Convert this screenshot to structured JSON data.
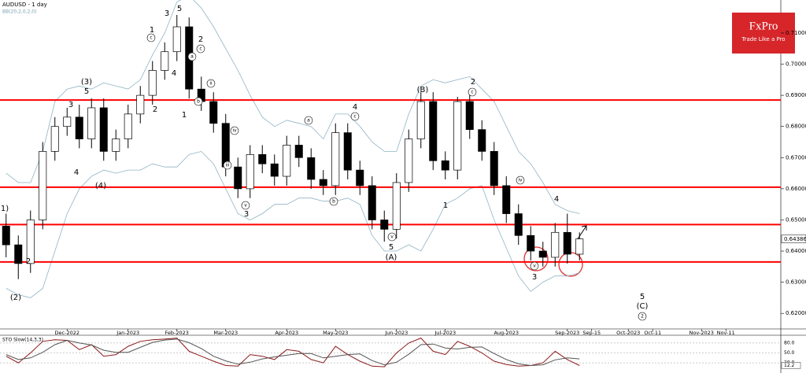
{
  "brand": {
    "name": "FxPro",
    "tagline": "Trade Like a Pro"
  },
  "chart_data": [
    {
      "type": "candlestick",
      "title": "AUDUSD - 1 day",
      "subtitle": "BB(20,2,0,2,0)",
      "categories": [
        null,
        null,
        null,
        null,
        null,
        "Dec-2022",
        null,
        null,
        null,
        null,
        "Jan-2023",
        null,
        null,
        null,
        "Feb-2023",
        null,
        null,
        null,
        "Mar-2023",
        null,
        null,
        null,
        null,
        "Apr-2023",
        null,
        null,
        null,
        "May-2023",
        null,
        null,
        null,
        null,
        "Jun-2023",
        null,
        null,
        null,
        "Jul-2023",
        null,
        null,
        null,
        null,
        "Aug-2023",
        null,
        null,
        null,
        null,
        "Sep-2023",
        null,
        "Sep-15",
        null,
        null,
        "Oct-2023",
        null,
        "Oct-11",
        null,
        null,
        null,
        "Nov-2023",
        null,
        "Nov-11",
        null,
        null,
        null,
        null
      ],
      "open": [
        0.648,
        0.642,
        0.636,
        0.65,
        0.672,
        0.68,
        0.683,
        0.676,
        0.686,
        0.672,
        0.676,
        0.684,
        0.69,
        0.698,
        0.704,
        0.712,
        0.692,
        0.688,
        0.681,
        0.667,
        0.66,
        0.671,
        0.668,
        0.664,
        0.674,
        0.67,
        0.663,
        0.661,
        0.678,
        0.666,
        0.661,
        0.65,
        0.647,
        0.662,
        0.676,
        0.688,
        0.669,
        0.666,
        0.688,
        0.679,
        0.672,
        0.661,
        0.652,
        0.645,
        0.64,
        0.638,
        0.646,
        0.639,
        null,
        null,
        null,
        null,
        null,
        null,
        null,
        null,
        null,
        null,
        null,
        null,
        null,
        null,
        null,
        null
      ],
      "high": [
        0.652,
        0.645,
        0.653,
        0.675,
        0.683,
        0.686,
        0.687,
        0.689,
        0.689,
        0.679,
        0.687,
        0.693,
        0.701,
        0.707,
        0.7158,
        0.715,
        0.696,
        0.691,
        0.684,
        0.67,
        0.674,
        0.674,
        0.671,
        0.677,
        0.677,
        0.673,
        0.666,
        0.681,
        0.681,
        0.669,
        0.664,
        0.653,
        0.665,
        0.679,
        0.691,
        0.691,
        0.672,
        0.6895,
        0.691,
        0.682,
        0.675,
        0.664,
        0.655,
        0.648,
        0.643,
        0.649,
        0.652,
        0.646,
        null,
        null,
        null,
        null,
        null,
        null,
        null,
        null,
        null,
        null,
        null,
        null,
        null,
        null,
        null,
        null
      ],
      "low": [
        0.638,
        0.631,
        0.633,
        0.647,
        0.669,
        0.677,
        0.673,
        0.673,
        0.669,
        0.669,
        0.673,
        0.681,
        0.687,
        0.695,
        0.701,
        0.689,
        0.685,
        0.678,
        0.664,
        0.657,
        0.657,
        0.665,
        0.661,
        0.661,
        0.667,
        0.66,
        0.658,
        0.658,
        0.663,
        0.658,
        0.647,
        0.643,
        0.644,
        0.659,
        0.673,
        0.666,
        0.663,
        0.663,
        0.676,
        0.669,
        0.658,
        0.649,
        0.642,
        0.637,
        0.635,
        0.635,
        0.636,
        0.637,
        null,
        null,
        null,
        null,
        null,
        null,
        null,
        null,
        null,
        null,
        null,
        null,
        null,
        null,
        null,
        null
      ],
      "close": [
        0.642,
        0.636,
        0.65,
        0.672,
        0.68,
        0.683,
        0.676,
        0.686,
        0.672,
        0.676,
        0.684,
        0.69,
        0.698,
        0.704,
        0.712,
        0.692,
        0.688,
        0.681,
        0.667,
        0.66,
        0.671,
        0.668,
        0.664,
        0.674,
        0.67,
        0.663,
        0.661,
        0.678,
        0.666,
        0.661,
        0.65,
        0.647,
        0.662,
        0.676,
        0.688,
        0.669,
        0.666,
        0.688,
        0.679,
        0.672,
        0.661,
        0.652,
        0.645,
        0.64,
        0.638,
        0.646,
        0.639,
        0.6439,
        null,
        null,
        null,
        null,
        null,
        null,
        null,
        null,
        null,
        null,
        null,
        null,
        null,
        null,
        null,
        null
      ],
      "up_color": "#ffffff",
      "down_color": "#000000",
      "last_price": 0.64386,
      "bands": {
        "color": "#8fb4c4",
        "upper": [
          0.665,
          0.662,
          0.662,
          0.672,
          0.688,
          0.692,
          0.693,
          0.692,
          0.694,
          0.693,
          0.692,
          0.695,
          0.703,
          0.71,
          0.72,
          0.722,
          0.718,
          0.712,
          0.705,
          0.698,
          0.69,
          0.683,
          0.68,
          0.682,
          0.681,
          0.68,
          0.676,
          0.684,
          0.684,
          0.68,
          0.675,
          0.672,
          0.672,
          0.684,
          0.693,
          0.695,
          0.694,
          0.695,
          0.696,
          0.692,
          0.688,
          0.68,
          0.672,
          0.668,
          0.662,
          0.655,
          0.653,
          0.652,
          null,
          null,
          null,
          null,
          null,
          null,
          null,
          null,
          null,
          null,
          null,
          null,
          null,
          null,
          null,
          null
        ],
        "lower": [
          0.628,
          0.626,
          0.625,
          0.628,
          0.64,
          0.652,
          0.66,
          0.664,
          0.666,
          0.665,
          0.666,
          0.666,
          0.668,
          0.667,
          0.667,
          0.671,
          0.672,
          0.668,
          0.66,
          0.652,
          0.65,
          0.652,
          0.655,
          0.655,
          0.657,
          0.657,
          0.656,
          0.656,
          0.657,
          0.655,
          0.645,
          0.64,
          0.64,
          0.642,
          0.64,
          0.647,
          0.655,
          0.657,
          0.66,
          0.661,
          0.65,
          0.641,
          0.632,
          0.627,
          0.63,
          0.632,
          0.632,
          0.633,
          null,
          null,
          null,
          null,
          null,
          null,
          null,
          null,
          null,
          null,
          null,
          null,
          null,
          null,
          null,
          null
        ]
      },
      "levels": {
        "color": "#ff0000",
        "values": [
          0.6885,
          0.6605,
          0.6485,
          0.6365
        ]
      },
      "channels": [
        {
          "color": "#0000ff",
          "values": [
            null,
            null,
            null,
            null,
            null,
            null,
            null,
            null,
            null,
            null,
            null,
            null,
            null,
            null,
            null,
            null,
            0.7047,
            null,
            null,
            null,
            null,
            null,
            null,
            null,
            null,
            null,
            null,
            null,
            null,
            null,
            null,
            null,
            null,
            null,
            null,
            null,
            null,
            null,
            null,
            null,
            null,
            null,
            null,
            null,
            null,
            null,
            null,
            null,
            null,
            null,
            null,
            null,
            null,
            null,
            null,
            null,
            null,
            null,
            null,
            null,
            null,
            null,
            null,
            0.6683
          ]
        },
        {
          "color": "#0000ff",
          "values": [
            null,
            null,
            null,
            null,
            null,
            null,
            null,
            null,
            null,
            null,
            null,
            null,
            null,
            null,
            null,
            null,
            0.6595,
            null,
            null,
            null,
            null,
            null,
            null,
            null,
            null,
            null,
            null,
            null,
            null,
            null,
            null,
            null,
            null,
            null,
            null,
            null,
            null,
            null,
            null,
            null,
            null,
            null,
            null,
            null,
            null,
            null,
            null,
            null,
            null,
            null,
            null,
            null,
            null,
            null,
            null,
            null,
            null,
            null,
            null,
            null,
            null,
            null,
            null,
            0.6231
          ]
        }
      ],
      "ylim": [
        0.615,
        0.7206
      ],
      "yticks": [
        {
          "value": 0.62,
          "label": "0.62000"
        },
        {
          "value": 0.63,
          "label": "0.63000"
        },
        {
          "value": 0.64,
          "label": "0.64000"
        },
        {
          "value": 0.65,
          "label": "0.65000"
        },
        {
          "value": 0.66,
          "label": "0.66000"
        },
        {
          "value": 0.67,
          "label": "0.67000"
        },
        {
          "value": 0.68,
          "label": "0.68000"
        },
        {
          "value": 0.69,
          "label": "0.69000"
        },
        {
          "value": 0.7,
          "label": "0.70000"
        },
        {
          "value": 0.71,
          "label": "0.71000"
        }
      ],
      "wave_labels": [
        "(2)",
        "1)",
        "2",
        "(3)",
        "5",
        "3",
        "4",
        "(4)",
        "1",
        "2",
        "3",
        "5",
        "4",
        "1",
        "2",
        "3",
        "4",
        "5",
        "(A)",
        "(B)",
        "1",
        "2",
        "3",
        "4",
        "5",
        "(C)"
      ],
      "wave_labels_circled": [
        "c",
        "a",
        "b",
        "c",
        "ii",
        "iv",
        "iii",
        "v",
        "a",
        "b",
        "c",
        "v",
        "c",
        "iv",
        "v",
        "2"
      ]
    },
    {
      "type": "line",
      "title": "STO Slow(14,3,3)",
      "series": [
        {
          "color": "#8b1a1a",
          "values": [
            40,
            20,
            50,
            85,
            90,
            88,
            60,
            75,
            40,
            45,
            70,
            85,
            90,
            92,
            95,
            55,
            40,
            25,
            12,
            10,
            45,
            40,
            30,
            60,
            55,
            30,
            20,
            70,
            45,
            25,
            10,
            8,
            50,
            80,
            95,
            55,
            45,
            85,
            70,
            50,
            25,
            15,
            10,
            12,
            20,
            55,
            30,
            12,
            null,
            null,
            null,
            null,
            null,
            null,
            null,
            null,
            null,
            null,
            null,
            null,
            null,
            null,
            null,
            null
          ]
        },
        {
          "color": "#555555",
          "values": [
            45,
            30,
            35,
            52,
            75,
            88,
            80,
            74,
            58,
            52,
            52,
            67,
            82,
            89,
            92,
            81,
            63,
            40,
            26,
            16,
            22,
            32,
            38,
            43,
            48,
            48,
            35,
            40,
            45,
            47,
            27,
            14,
            22,
            46,
            75,
            77,
            65,
            62,
            67,
            68,
            48,
            30,
            17,
            12,
            14,
            29,
            35,
            32,
            null,
            null,
            null,
            null,
            null,
            null,
            null,
            null,
            null,
            null,
            null,
            null,
            null,
            null,
            null,
            null
          ]
        }
      ],
      "ylim": [
        0,
        100
      ],
      "yticks": [
        {
          "value": 20,
          "label": "20.0"
        },
        {
          "value": 50,
          "label": "50.0"
        },
        {
          "value": 80,
          "label": "80.0"
        }
      ],
      "last_value": 12.2
    }
  ]
}
